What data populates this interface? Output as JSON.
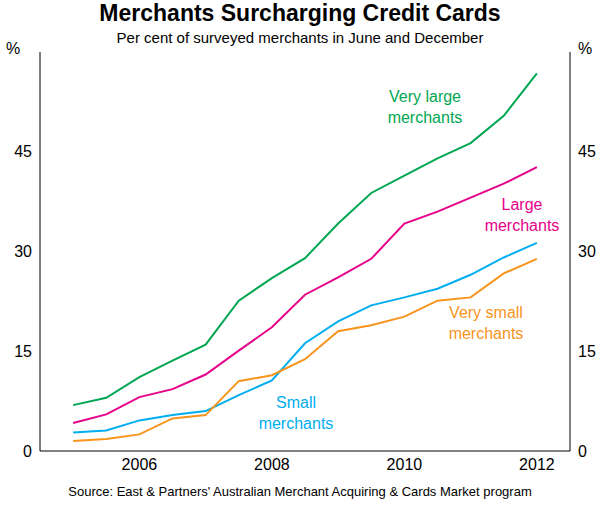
{
  "chart_data": {
    "type": "line",
    "title": "Merchants Surcharging Credit Cards",
    "subtitle": "Per cent of surveyed merchants in June and December",
    "ylabel": "%",
    "source": "Source: East & Partners' Australian Merchant Acquiring & Cards Market program",
    "x": [
      2005.5,
      2006,
      2006.5,
      2007,
      2007.5,
      2008,
      2008.5,
      2009,
      2009.5,
      2010,
      2010.5,
      2011,
      2011.5,
      2012,
      2012.5
    ],
    "xlim": [
      2005,
      2013
    ],
    "xticks": [
      {
        "value": 2006.5,
        "label": "2006"
      },
      {
        "value": 2008.5,
        "label": "2008"
      },
      {
        "value": 2010.5,
        "label": "2010"
      },
      {
        "value": 2012.5,
        "label": "2012"
      }
    ],
    "ylim": [
      0,
      60
    ],
    "yticks": [
      0,
      15,
      30,
      45
    ],
    "grid": false,
    "series": [
      {
        "name": "Very large merchants",
        "color": "#00a651",
        "values": [
          6.9,
          8,
          11.1,
          13.6,
          16,
          22.6,
          26,
          29,
          34.2,
          38.8,
          41.4,
          44,
          46.3,
          50.4,
          56.8
        ]
      },
      {
        "name": "Large merchants",
        "color": "#e6008a",
        "values": [
          4.2,
          5.5,
          8.1,
          9.3,
          11.5,
          15.1,
          18.6,
          23.5,
          26.1,
          28.9,
          34.2,
          36,
          38.1,
          40.2,
          42.7
        ]
      },
      {
        "name": "Small merchants",
        "color": "#00aeef",
        "values": [
          2.8,
          3.1,
          4.6,
          5.4,
          6,
          8.4,
          10.6,
          16.2,
          19.5,
          21.9,
          23.1,
          24.4,
          26.5,
          29.1,
          31.3
        ]
      },
      {
        "name": "Very small merchants",
        "color": "#f7941d",
        "values": [
          1.5,
          1.8,
          2.5,
          4.9,
          5.4,
          10.5,
          11.4,
          13.8,
          18,
          18.9,
          20.2,
          22.6,
          23.1,
          26.7,
          28.9
        ]
      }
    ]
  }
}
